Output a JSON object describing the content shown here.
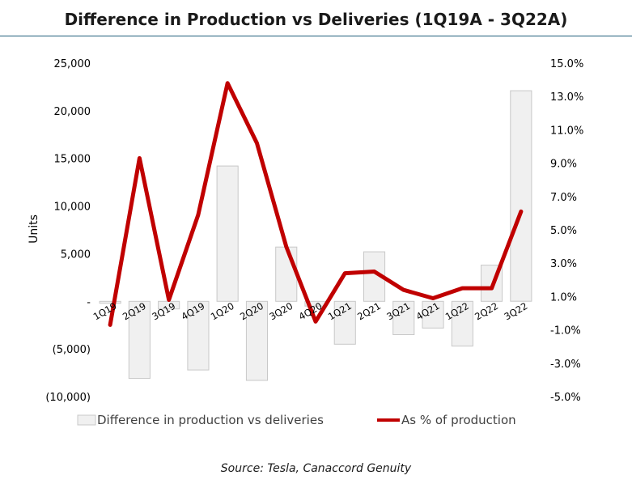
{
  "chart_data": {
    "type": "bar+line",
    "title": "Difference in Production vs Deliveries (1Q19A - 3Q22A)",
    "categories": [
      "1Q19",
      "2Q19",
      "3Q19",
      "4Q19",
      "1Q20",
      "2Q20",
      "3Q20",
      "4Q20",
      "1Q21",
      "2Q21",
      "3Q21",
      "4Q21",
      "1Q22",
      "2Q22",
      "3Q22"
    ],
    "series": [
      {
        "name": "Difference in production vs deliveries",
        "type": "bar",
        "axis": "left",
        "color": "#f0f0f0",
        "edge_color": "#c8c8c8",
        "values": [
          -200,
          -8100,
          -800,
          -7200,
          14200,
          -8300,
          5700,
          -500,
          -4500,
          5200,
          -3500,
          -2800,
          -4700,
          3800,
          22100
        ]
      },
      {
        "name": "As % of production",
        "type": "line",
        "axis": "right",
        "color": "#c00000",
        "values": [
          -0.7,
          9.3,
          0.8,
          5.9,
          13.8,
          10.2,
          4.0,
          -0.5,
          2.4,
          2.5,
          1.4,
          0.9,
          1.5,
          1.5,
          6.1
        ]
      }
    ],
    "ylabel": "Units",
    "ylim": [
      -10000,
      25000
    ],
    "y_ticks": [
      25000,
      20000,
      15000,
      10000,
      5000,
      0,
      -5000,
      -10000
    ],
    "y_tick_labels": [
      "25,000",
      "20,000",
      "15,000",
      "10,000",
      "5,000",
      "-",
      "(5,000)",
      "(10,000)"
    ],
    "y2lim": [
      -5.0,
      15.0
    ],
    "y2_ticks": [
      15,
      13,
      11,
      9,
      7,
      5,
      3,
      1,
      -1,
      -3,
      -5
    ],
    "y2_tick_labels": [
      "15.0%",
      "13.0%",
      "11.0%",
      "9.0%",
      "7.0%",
      "5.0%",
      "3.0%",
      "1.0%",
      "-1.0%",
      "-3.0%",
      "-5.0%"
    ],
    "grid": false,
    "legend_position": "bottom"
  },
  "source_note": "Source: Tesla, Canaccord Genuity"
}
